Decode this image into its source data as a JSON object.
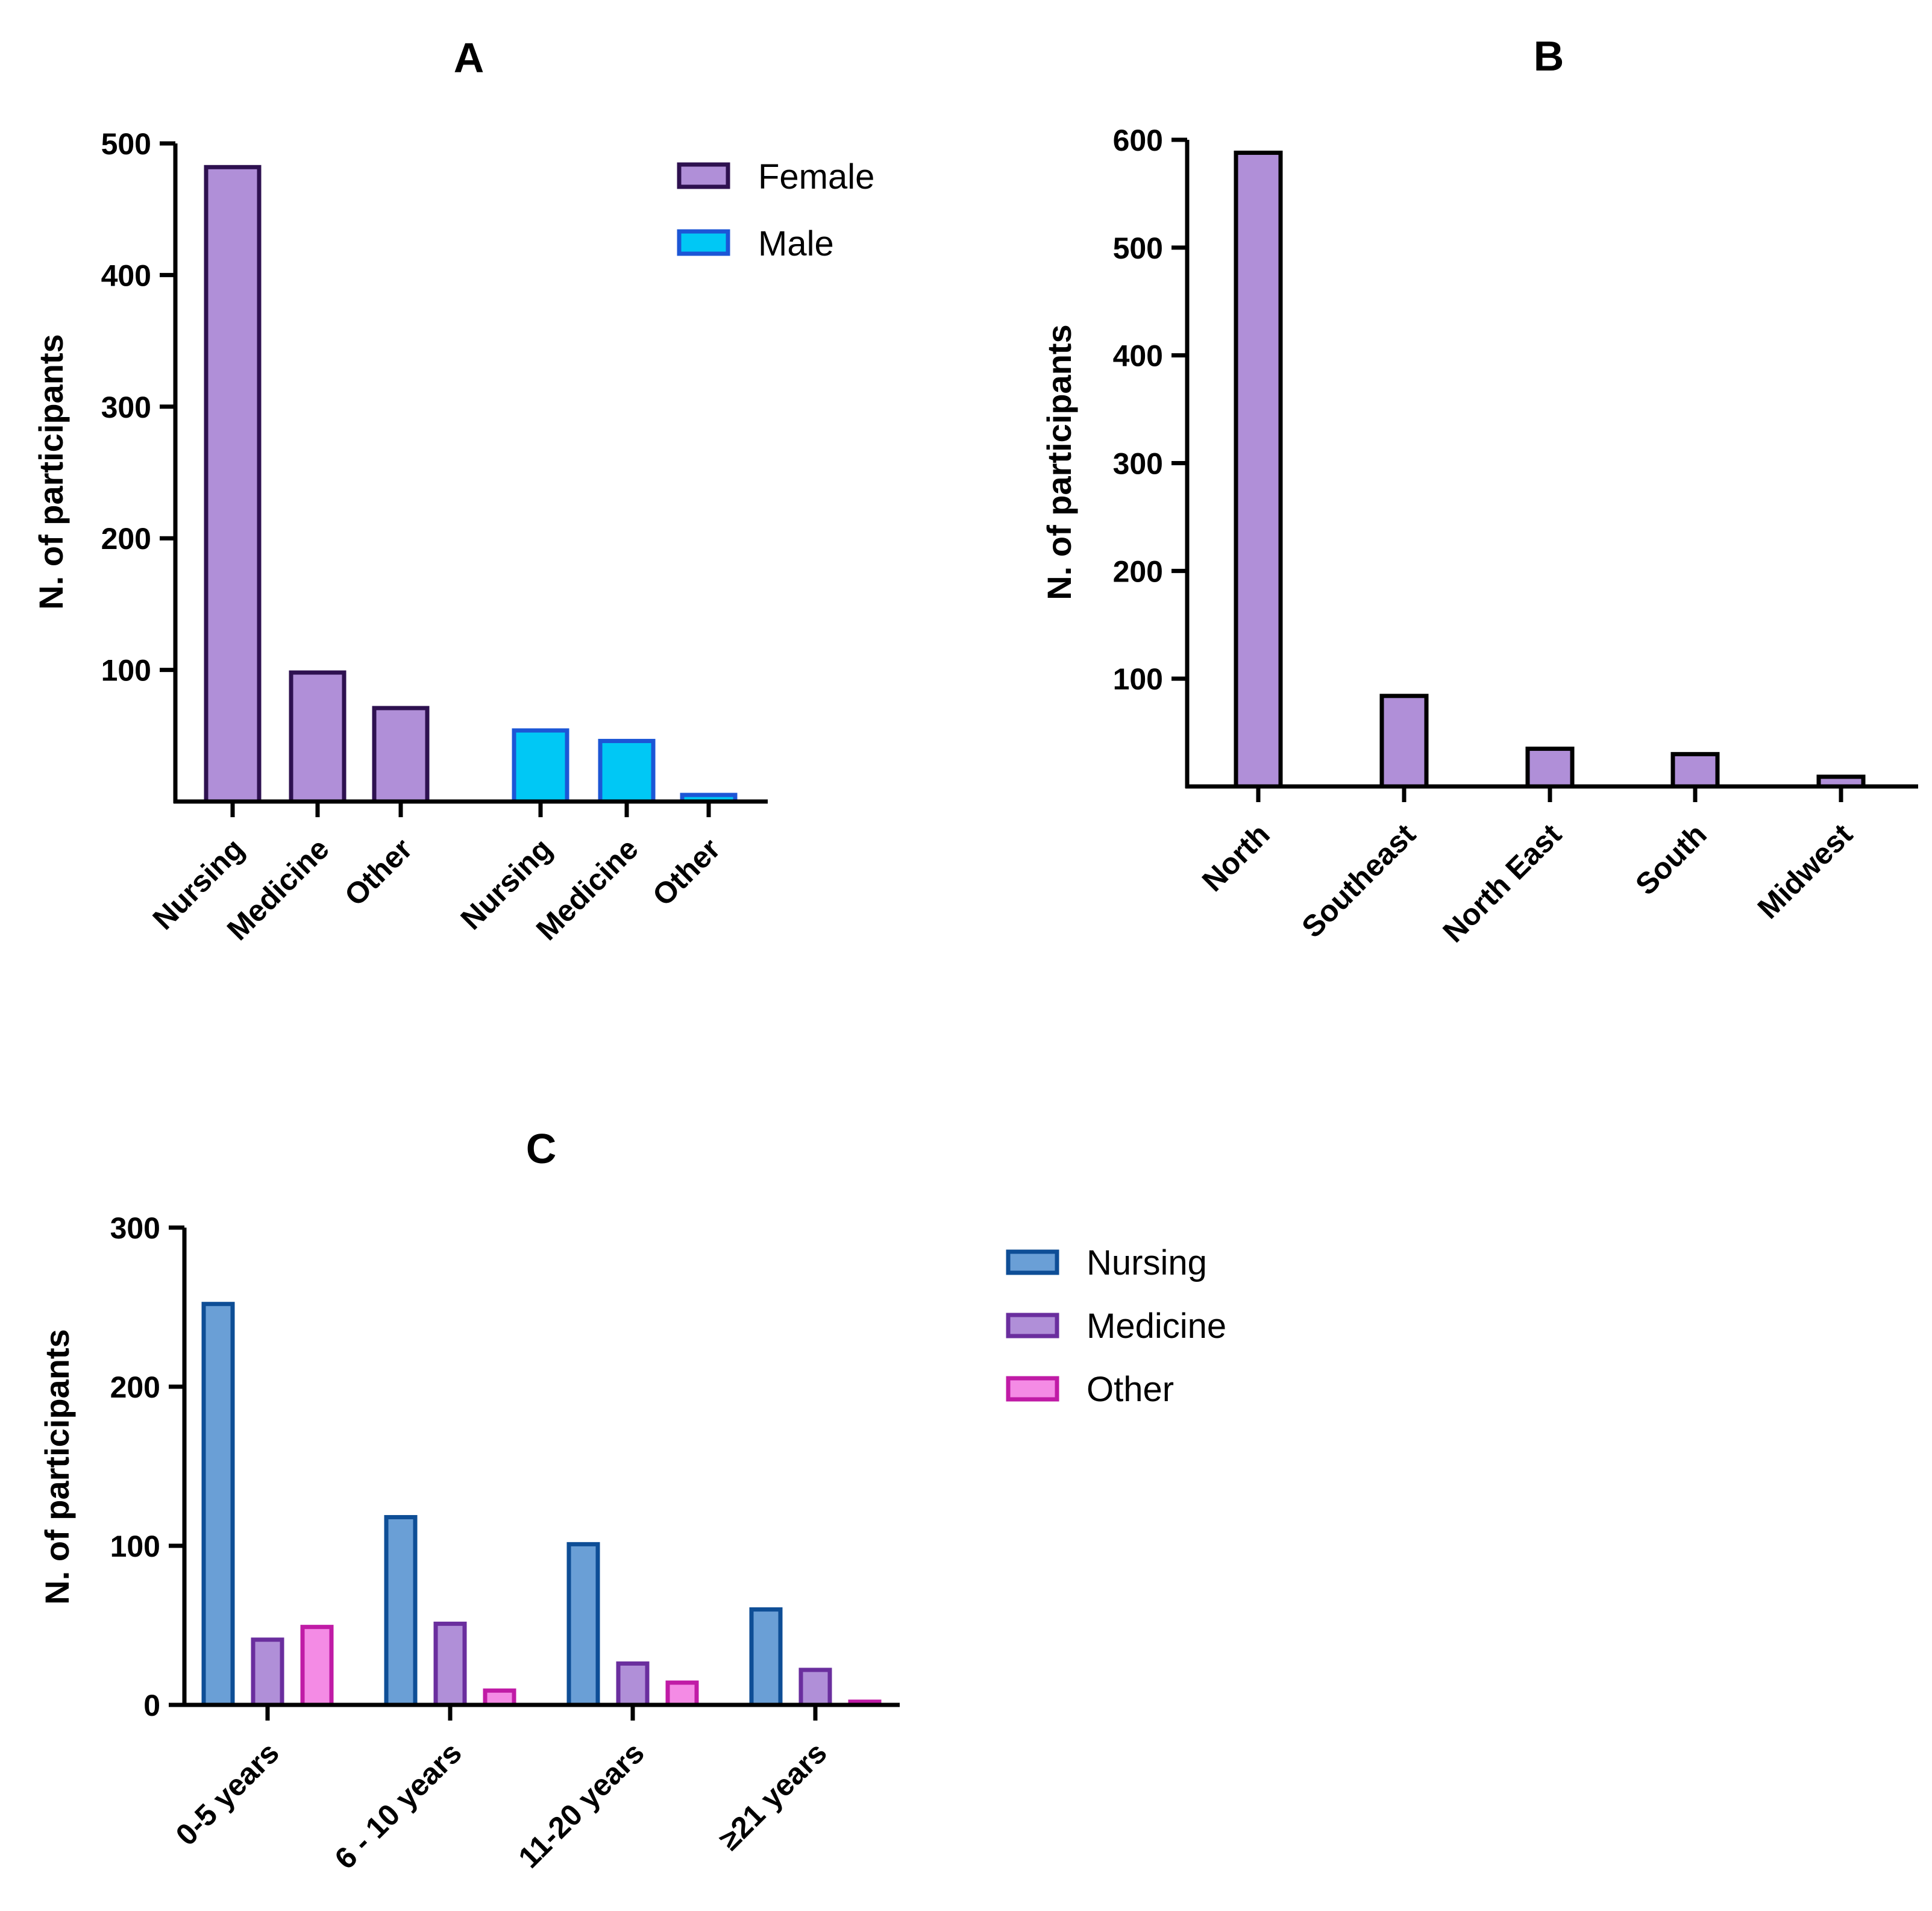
{
  "colors": {
    "purple_fill": "#B08FD8",
    "purple_edge": "#2E1150",
    "cyan_fill": "#00C8F5",
    "cyan_edge": "#1C56D6",
    "nursing_fill": "#6A9FD6",
    "nursing_edge": "#0E4E96",
    "medicine_fill": "#B08FD8",
    "medicine_edge": "#6A2E9E",
    "other_fill": "#F48BE5",
    "other_edge": "#C01BA6",
    "axis": "#000000"
  },
  "chart_data": [
    {
      "panel": "A",
      "type": "bar",
      "ylabel": "N. of participants",
      "ylim": [
        0,
        500
      ],
      "yticks": [
        100,
        200,
        300,
        400,
        500
      ],
      "groups": [
        {
          "name": "Female",
          "color_key": "purple",
          "categories": [
            "Nursing",
            "Medicine",
            "Other"
          ],
          "values": [
            482,
            98,
            71
          ]
        },
        {
          "name": "Male",
          "color_key": "cyan",
          "categories": [
            "Nursing",
            "Medicine",
            "Other"
          ],
          "values": [
            54,
            46,
            5
          ]
        }
      ],
      "legend": [
        "Female",
        "Male"
      ],
      "legend_position": "top-right"
    },
    {
      "panel": "B",
      "type": "bar",
      "ylabel": "N. of participants",
      "ylim": [
        0,
        600
      ],
      "yticks": [
        100,
        200,
        300,
        400,
        500,
        600
      ],
      "categories": [
        "North",
        "Southeast",
        "North East",
        "South",
        "Midwest"
      ],
      "values": [
        588,
        84,
        35,
        30,
        9
      ]
    },
    {
      "panel": "C",
      "type": "bar",
      "ylabel": "N. of participants",
      "ylim": [
        0,
        300
      ],
      "yticks": [
        0,
        100,
        200,
        300
      ],
      "categories": [
        "0-5 years",
        "6 - 10 years",
        "11-20 years",
        "≥21 years"
      ],
      "series": [
        {
          "name": "Nursing",
          "values": [
            252,
            118,
            101,
            60
          ]
        },
        {
          "name": "Medicine",
          "values": [
            41,
            51,
            26,
            22
          ]
        },
        {
          "name": "Other",
          "values": [
            49,
            9,
            14,
            2
          ]
        }
      ],
      "legend_position": "right"
    }
  ]
}
